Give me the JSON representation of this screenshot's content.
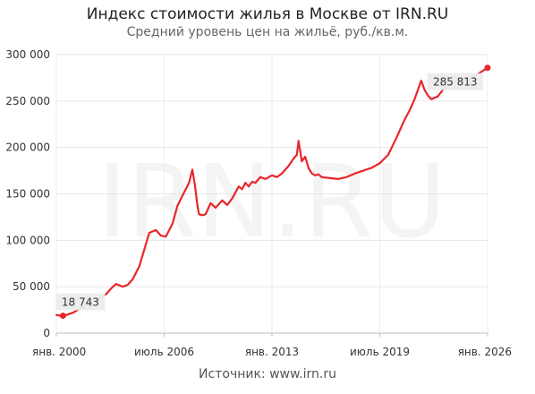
{
  "header": {
    "title": "Индекс стоимости жилья в Москве от IRN.RU",
    "subtitle": "Средний уровень цен на жильё, руб./кв.м."
  },
  "watermark": "IRN.RU",
  "footer": {
    "source": "Источник: www.irn.ru"
  },
  "chart_data": {
    "type": "line",
    "title": "Индекс стоимости жилья в Москве от IRN.RU",
    "subtitle": "Средний уровень цен на жильё, руб./кв.м.",
    "xlabel": "",
    "ylabel": "",
    "ylim": [
      0,
      300000
    ],
    "xlim": [
      2000.0,
      2026.0
    ],
    "grid": true,
    "legend": "none",
    "color": "#e8262b",
    "y_ticks": [
      0,
      50000,
      100000,
      150000,
      200000,
      250000,
      300000
    ],
    "y_tick_labels": [
      "0",
      "50 000",
      "100 000",
      "150 000",
      "200 000",
      "250 000",
      "300 000"
    ],
    "x_ticks": [
      {
        "x": 2000.0,
        "label": "янв. 2000"
      },
      {
        "x": 2006.5,
        "label": "июль 2006"
      },
      {
        "x": 2013.0,
        "label": "янв. 2013"
      },
      {
        "x": 2019.5,
        "label": "июль 2019"
      },
      {
        "x": 2026.0,
        "label": "янв. 2026"
      }
    ],
    "annotations": [
      {
        "x": 2000.4,
        "y": 18743,
        "label": "18 743",
        "position": "above"
      },
      {
        "x": 2026.0,
        "y": 285813,
        "label": "285 813",
        "position": "below-left"
      }
    ],
    "x": [
      2000.0,
      2000.3,
      2000.6,
      2001.0,
      2001.5,
      2002.0,
      2002.5,
      2003.0,
      2003.3,
      2003.6,
      2004.0,
      2004.3,
      2004.6,
      2005.0,
      2005.3,
      2005.6,
      2006.0,
      2006.3,
      2006.6,
      2007.0,
      2007.3,
      2007.6,
      2008.0,
      2008.2,
      2008.35,
      2008.5,
      2008.6,
      2008.8,
      2009.0,
      2009.3,
      2009.6,
      2010.0,
      2010.3,
      2010.6,
      2011.0,
      2011.2,
      2011.4,
      2011.6,
      2011.8,
      2012.0,
      2012.3,
      2012.6,
      2013.0,
      2013.3,
      2013.6,
      2014.0,
      2014.3,
      2014.5,
      2014.6,
      2014.8,
      2015.0,
      2015.2,
      2015.4,
      2015.6,
      2015.8,
      2016.0,
      2016.5,
      2017.0,
      2017.5,
      2018.0,
      2018.5,
      2019.0,
      2019.5,
      2020.0,
      2020.5,
      2021.0,
      2021.3,
      2021.6,
      2022.0,
      2022.2,
      2022.4,
      2022.6,
      2023.0,
      2023.3,
      2023.6,
      2024.0,
      2024.5,
      2025.0,
      2025.5,
      2026.0
    ],
    "y": [
      19500,
      18700,
      19500,
      22000,
      27000,
      33000,
      36000,
      42000,
      48000,
      53000,
      50000,
      52000,
      58000,
      72000,
      90000,
      108000,
      111000,
      105000,
      104000,
      118000,
      137000,
      148000,
      162000,
      176000,
      160000,
      138000,
      128000,
      127000,
      128000,
      140000,
      135000,
      143000,
      138000,
      145000,
      158000,
      155000,
      162000,
      158000,
      163000,
      162000,
      168000,
      166000,
      170000,
      168000,
      172000,
      180000,
      188000,
      192000,
      207000,
      185000,
      190000,
      178000,
      172000,
      170000,
      171000,
      168000,
      167000,
      166000,
      168000,
      172000,
      175000,
      178000,
      183000,
      192000,
      210000,
      230000,
      240000,
      252000,
      272000,
      262000,
      256000,
      252000,
      255000,
      262000,
      268000,
      272000,
      273000,
      275000,
      280000,
      285813
    ]
  }
}
